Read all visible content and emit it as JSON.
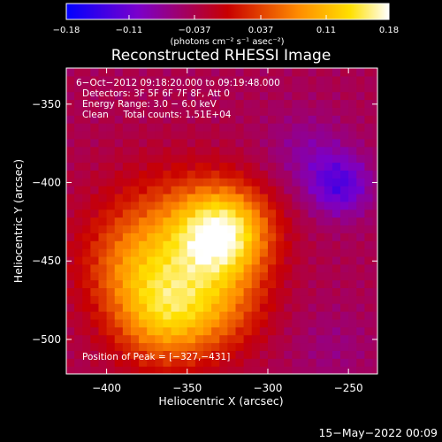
{
  "chart_data": {
    "type": "heatmap",
    "title": "Reconstructed RHESSI Image",
    "xlabel": "Heliocentric X (arcsec)",
    "ylabel": "Heliocentric Y (arcsec)",
    "xlim": [
      -425,
      -232
    ],
    "ylim": [
      -522,
      -327
    ],
    "x_ticks": [
      -400,
      -350,
      -300,
      -250
    ],
    "y_ticks": [
      -350,
      -400,
      -450,
      -500
    ],
    "x_tick_labels": [
      "−400",
      "−350",
      "−300",
      "−250"
    ],
    "y_tick_labels": [
      "−350",
      "−400",
      "−450",
      "−500"
    ],
    "colorbar": {
      "min": -0.18,
      "max": 0.18,
      "tick_values": [
        -0.18,
        -0.11,
        -0.037,
        0.037,
        0.11,
        0.18
      ],
      "tick_labels": [
        "−0.18",
        "−0.11",
        "−0.037",
        "0.037",
        "0.11",
        "0.18"
      ],
      "unit_label": "(photons cm⁻² s⁻¹ asec⁻²)"
    },
    "annotations": [
      "6−Oct−2012 09:18:20.000 to 09:19:48.000",
      "Detectors: 3F 5F 6F 7F 8F, Att 0",
      "Energy Range: 3.0 − 6.0 keV",
      "Clean     Total counts: 1.51E+04"
    ],
    "peak_label": "Position of Peak = [−327,−431]",
    "peak": {
      "x": -327,
      "y": -431,
      "value": 0.18
    },
    "sources": [
      {
        "x": -327,
        "y": -431,
        "sigma": 20,
        "amplitude": 0.17
      },
      {
        "x": -360,
        "y": -440,
        "sigma": 32,
        "amplitude": 0.1
      },
      {
        "x": -365,
        "y": -487,
        "sigma": 22,
        "amplitude": 0.11
      },
      {
        "x": -330,
        "y": -478,
        "sigma": 22,
        "amplitude": 0.07
      },
      {
        "x": -385,
        "y": -455,
        "sigma": 22,
        "amplitude": 0.05
      },
      {
        "x": -255,
        "y": -402,
        "sigma": 14,
        "amplitude": -0.08
      },
      {
        "x": -275,
        "y": -380,
        "sigma": 18,
        "amplitude": -0.035
      },
      {
        "x": -260,
        "y": -505,
        "sigma": 18,
        "amplitude": -0.02
      }
    ],
    "background": -0.04,
    "grid": false,
    "colormap": [
      "#0000ff",
      "#7a00cc",
      "#c80000",
      "#ff8c00",
      "#ffe000",
      "#ffffff"
    ]
  },
  "footer": {
    "date": "15−May−2022 00:09"
  }
}
